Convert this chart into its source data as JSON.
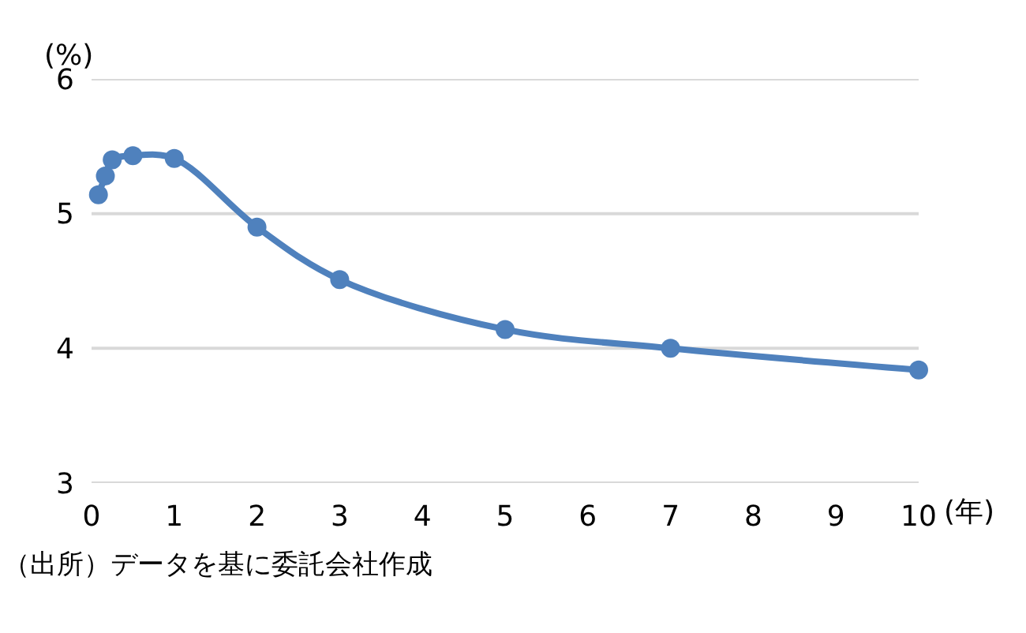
{
  "chart_data": {
    "type": "line",
    "xlabel": "(年)",
    "ylabel": "(%)",
    "x": [
      0.083,
      0.167,
      0.25,
      0.5,
      1,
      2,
      3,
      5,
      7,
      10
    ],
    "series": [
      {
        "color": "#4f81bd",
        "values": [
          5.14,
          5.28,
          5.4,
          5.43,
          5.41,
          4.9,
          4.51,
          4.14,
          4.0,
          3.84
        ]
      }
    ],
    "xlim": [
      0,
      10
    ],
    "xticks": [
      0,
      1,
      2,
      3,
      4,
      5,
      6,
      7,
      8,
      9,
      10
    ],
    "ylim": [
      3,
      6
    ],
    "yticks": [
      3,
      4,
      5,
      6
    ],
    "grid": "y",
    "marker": "circle",
    "line_style": "solid",
    "annotations": [
      "（出所）データを基に委託会社作成"
    ]
  }
}
